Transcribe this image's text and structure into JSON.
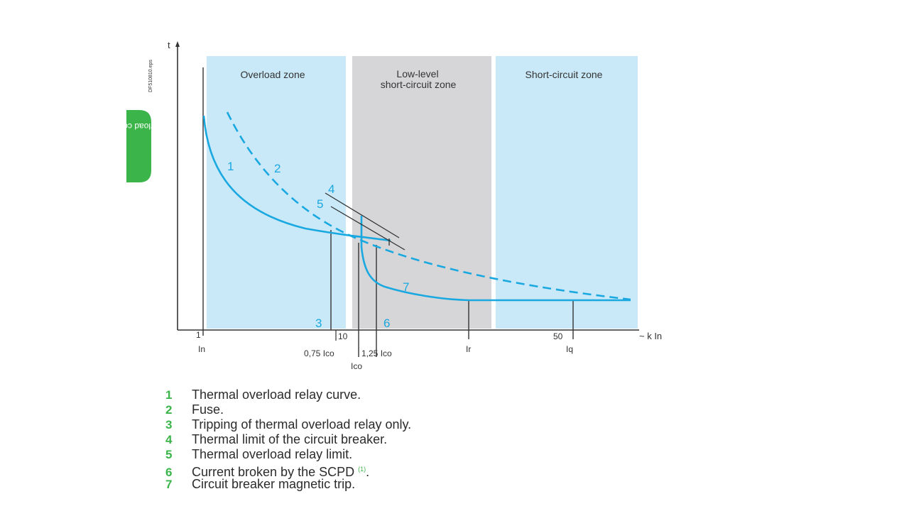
{
  "ref_code": "DF510810.eps",
  "side_tab_text": "Overload co",
  "axes": {
    "y_label": "t",
    "x_label": "~ k In"
  },
  "zones": [
    {
      "label_lines": [
        "Overload zone"
      ]
    },
    {
      "label_lines": [
        "Low-level",
        "short-circuit zone"
      ]
    },
    {
      "label_lines": [
        "Short-circuit zone"
      ]
    }
  ],
  "x_ticks": {
    "t1": "1",
    "t10": "10",
    "t50": "50"
  },
  "x_markers": {
    "in": "In",
    "ico_low": "0,75 Ico",
    "ico_high": "1,25 Ico",
    "ico": "Ico",
    "ir": "Ir",
    "iq": "Iq"
  },
  "curve_numbers": {
    "n1": "1",
    "n2": "2",
    "n3": "3",
    "n4": "4",
    "n5": "5",
    "n6": "6",
    "n7": "7"
  },
  "colors": {
    "zone_light": "#c9e9f8",
    "zone_grey": "#d6d6d8",
    "curve": "#1aa8e0",
    "legend_number": "#3bb54a",
    "side_tab": "#3bb54a"
  },
  "legend": [
    {
      "num": "1",
      "text": "Thermal overload relay curve."
    },
    {
      "num": "2",
      "text": "Fuse."
    },
    {
      "num": "3",
      "text": "Tripping of thermal overload relay only."
    },
    {
      "num": "4",
      "text": "Thermal limit of the circuit breaker."
    },
    {
      "num": "5",
      "text": "Thermal overload relay limit."
    },
    {
      "num": "6",
      "text": "Current broken by the SCPD",
      "footnote": "(1)",
      "suffix": "."
    },
    {
      "num": "7",
      "text": "Circuit breaker magnetic trip."
    }
  ]
}
